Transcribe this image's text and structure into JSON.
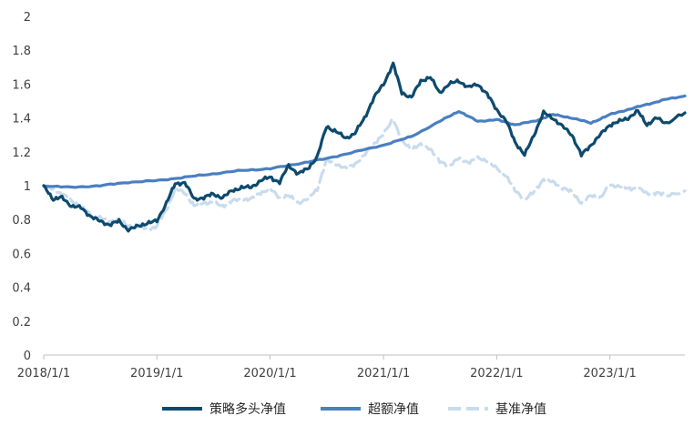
{
  "chart_data": {
    "type": "line",
    "title": "",
    "xlabel": "",
    "ylabel": "",
    "ylim": [
      0,
      2
    ],
    "y_ticks": [
      "0",
      "0.2",
      "0.4",
      "0.6",
      "0.8",
      "1",
      "1.2",
      "1.4",
      "1.6",
      "1.8",
      "2"
    ],
    "x_tick_labels": [
      "2018/1/1",
      "2019/1/1",
      "2020/1/1",
      "2021/1/1",
      "2022/1/1",
      "2023/1/1"
    ],
    "x_range": [
      "2018-01-01",
      "2023-08-31"
    ],
    "grid": false,
    "legend_position": "bottom",
    "series": [
      {
        "name": "策略多头净值",
        "color": "#0e4a6e",
        "style": "solid",
        "points": [
          [
            "2018-01-01",
            1.0
          ],
          [
            "2018-02-01",
            0.92
          ],
          [
            "2018-03-01",
            0.93
          ],
          [
            "2018-04-01",
            0.88
          ],
          [
            "2018-05-01",
            0.87
          ],
          [
            "2018-06-01",
            0.82
          ],
          [
            "2018-07-01",
            0.79
          ],
          [
            "2018-08-01",
            0.77
          ],
          [
            "2018-09-01",
            0.79
          ],
          [
            "2018-10-01",
            0.74
          ],
          [
            "2018-11-01",
            0.76
          ],
          [
            "2018-12-01",
            0.78
          ],
          [
            "2019-01-01",
            0.79
          ],
          [
            "2019-02-01",
            0.9
          ],
          [
            "2019-03-01",
            1.01
          ],
          [
            "2019-04-01",
            1.02
          ],
          [
            "2019-05-01",
            0.92
          ],
          [
            "2019-06-01",
            0.93
          ],
          [
            "2019-07-01",
            0.95
          ],
          [
            "2019-08-01",
            0.93
          ],
          [
            "2019-09-01",
            0.97
          ],
          [
            "2019-10-01",
            0.99
          ],
          [
            "2019-11-01",
            0.99
          ],
          [
            "2019-12-01",
            1.03
          ],
          [
            "2020-01-01",
            1.05
          ],
          [
            "2020-02-01",
            1.02
          ],
          [
            "2020-03-01",
            1.12
          ],
          [
            "2020-04-01",
            1.07
          ],
          [
            "2020-05-01",
            1.1
          ],
          [
            "2020-06-01",
            1.17
          ],
          [
            "2020-07-01",
            1.35
          ],
          [
            "2020-08-01",
            1.32
          ],
          [
            "2020-09-01",
            1.28
          ],
          [
            "2020-10-01",
            1.31
          ],
          [
            "2020-11-01",
            1.4
          ],
          [
            "2020-12-01",
            1.52
          ],
          [
            "2021-01-01",
            1.6
          ],
          [
            "2021-02-01",
            1.72
          ],
          [
            "2021-03-01",
            1.55
          ],
          [
            "2021-04-01",
            1.52
          ],
          [
            "2021-05-01",
            1.62
          ],
          [
            "2021-06-01",
            1.64
          ],
          [
            "2021-07-01",
            1.55
          ],
          [
            "2021-08-01",
            1.6
          ],
          [
            "2021-09-01",
            1.62
          ],
          [
            "2021-10-01",
            1.58
          ],
          [
            "2021-11-01",
            1.6
          ],
          [
            "2021-12-01",
            1.54
          ],
          [
            "2022-01-01",
            1.45
          ],
          [
            "2022-02-01",
            1.38
          ],
          [
            "2022-03-01",
            1.26
          ],
          [
            "2022-04-01",
            1.18
          ],
          [
            "2022-05-01",
            1.3
          ],
          [
            "2022-06-01",
            1.43
          ],
          [
            "2022-07-01",
            1.4
          ],
          [
            "2022-08-01",
            1.35
          ],
          [
            "2022-09-01",
            1.3
          ],
          [
            "2022-10-01",
            1.18
          ],
          [
            "2022-11-01",
            1.24
          ],
          [
            "2022-12-01",
            1.3
          ],
          [
            "2023-01-01",
            1.36
          ],
          [
            "2023-02-01",
            1.38
          ],
          [
            "2023-03-01",
            1.4
          ],
          [
            "2023-04-01",
            1.44
          ],
          [
            "2023-05-01",
            1.36
          ],
          [
            "2023-06-01",
            1.4
          ],
          [
            "2023-07-01",
            1.37
          ],
          [
            "2023-08-31",
            1.43
          ]
        ]
      },
      {
        "name": "超额净值",
        "color": "#4a7fc1",
        "style": "solid",
        "points": [
          [
            "2018-01-01",
            1.0
          ],
          [
            "2018-04-01",
            0.99
          ],
          [
            "2018-07-01",
            1.0
          ],
          [
            "2018-10-01",
            1.02
          ],
          [
            "2019-01-01",
            1.03
          ],
          [
            "2019-04-01",
            1.05
          ],
          [
            "2019-07-01",
            1.07
          ],
          [
            "2019-10-01",
            1.09
          ],
          [
            "2020-01-01",
            1.1
          ],
          [
            "2020-04-01",
            1.13
          ],
          [
            "2020-07-01",
            1.16
          ],
          [
            "2020-10-01",
            1.2
          ],
          [
            "2021-01-01",
            1.24
          ],
          [
            "2021-04-01",
            1.29
          ],
          [
            "2021-07-01",
            1.38
          ],
          [
            "2021-09-01",
            1.44
          ],
          [
            "2021-11-01",
            1.38
          ],
          [
            "2022-01-01",
            1.39
          ],
          [
            "2022-03-01",
            1.36
          ],
          [
            "2022-05-01",
            1.38
          ],
          [
            "2022-07-01",
            1.42
          ],
          [
            "2022-09-01",
            1.4
          ],
          [
            "2022-11-01",
            1.37
          ],
          [
            "2023-01-01",
            1.42
          ],
          [
            "2023-03-01",
            1.45
          ],
          [
            "2023-05-01",
            1.48
          ],
          [
            "2023-07-01",
            1.51
          ],
          [
            "2023-08-31",
            1.53
          ]
        ]
      },
      {
        "name": "基准净值",
        "color": "#c9dcee",
        "style": "dashed",
        "points": [
          [
            "2018-01-01",
            1.0
          ],
          [
            "2018-02-01",
            0.98
          ],
          [
            "2018-03-01",
            0.95
          ],
          [
            "2018-04-01",
            0.91
          ],
          [
            "2018-05-01",
            0.88
          ],
          [
            "2018-06-01",
            0.83
          ],
          [
            "2018-07-01",
            0.81
          ],
          [
            "2018-08-01",
            0.79
          ],
          [
            "2018-09-01",
            0.8
          ],
          [
            "2018-10-01",
            0.76
          ],
          [
            "2018-11-01",
            0.77
          ],
          [
            "2018-12-01",
            0.74
          ],
          [
            "2019-01-01",
            0.76
          ],
          [
            "2019-02-01",
            0.86
          ],
          [
            "2019-03-01",
            0.98
          ],
          [
            "2019-04-01",
            0.96
          ],
          [
            "2019-05-01",
            0.88
          ],
          [
            "2019-06-01",
            0.9
          ],
          [
            "2019-07-01",
            0.9
          ],
          [
            "2019-08-01",
            0.88
          ],
          [
            "2019-09-01",
            0.91
          ],
          [
            "2019-10-01",
            0.92
          ],
          [
            "2019-11-01",
            0.92
          ],
          [
            "2019-12-01",
            0.96
          ],
          [
            "2020-01-01",
            0.98
          ],
          [
            "2020-02-01",
            0.93
          ],
          [
            "2020-03-01",
            0.94
          ],
          [
            "2020-04-01",
            0.9
          ],
          [
            "2020-05-01",
            0.92
          ],
          [
            "2020-06-01",
            0.98
          ],
          [
            "2020-07-01",
            1.15
          ],
          [
            "2020-08-01",
            1.13
          ],
          [
            "2020-09-01",
            1.1
          ],
          [
            "2020-10-01",
            1.13
          ],
          [
            "2020-11-01",
            1.18
          ],
          [
            "2020-12-01",
            1.25
          ],
          [
            "2021-01-01",
            1.3
          ],
          [
            "2021-02-01",
            1.4
          ],
          [
            "2021-03-01",
            1.26
          ],
          [
            "2021-04-01",
            1.22
          ],
          [
            "2021-05-01",
            1.24
          ],
          [
            "2021-06-01",
            1.22
          ],
          [
            "2021-07-01",
            1.14
          ],
          [
            "2021-08-01",
            1.12
          ],
          [
            "2021-09-01",
            1.16
          ],
          [
            "2021-10-01",
            1.14
          ],
          [
            "2021-11-01",
            1.16
          ],
          [
            "2021-12-01",
            1.15
          ],
          [
            "2022-01-01",
            1.1
          ],
          [
            "2022-02-01",
            1.06
          ],
          [
            "2022-03-01",
            0.97
          ],
          [
            "2022-04-01",
            0.92
          ],
          [
            "2022-05-01",
            0.96
          ],
          [
            "2022-06-01",
            1.04
          ],
          [
            "2022-07-01",
            1.02
          ],
          [
            "2022-08-01",
            0.99
          ],
          [
            "2022-09-01",
            0.96
          ],
          [
            "2022-10-01",
            0.9
          ],
          [
            "2022-11-01",
            0.94
          ],
          [
            "2022-12-01",
            0.93
          ],
          [
            "2023-01-01",
            1.0
          ],
          [
            "2023-02-01",
            1.0
          ],
          [
            "2023-03-01",
            0.98
          ],
          [
            "2023-04-01",
            0.99
          ],
          [
            "2023-05-01",
            0.95
          ],
          [
            "2023-06-01",
            0.96
          ],
          [
            "2023-07-01",
            0.94
          ],
          [
            "2023-08-31",
            0.97
          ]
        ]
      }
    ]
  }
}
